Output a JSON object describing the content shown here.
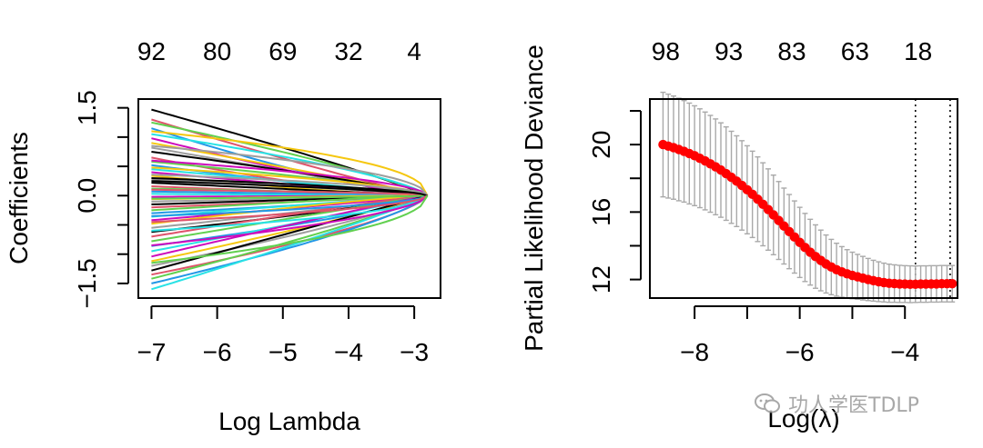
{
  "chart_data": [
    {
      "type": "line",
      "title": "",
      "xlabel": "Log Lambda",
      "ylabel": "Coefficients",
      "xlim": [
        -7.2,
        -2.6
      ],
      "ylim": [
        -1.75,
        1.65
      ],
      "x_ticks": [
        -7,
        -6,
        -5,
        -4,
        -3
      ],
      "x_tick_labels": [
        "−7",
        "−6",
        "−5",
        "−4",
        "−3"
      ],
      "y_ticks": [
        -1.5,
        0.0,
        1.5
      ],
      "y_tick_labels": [
        "−1.5",
        "0.0",
        "1.5"
      ],
      "top_axis_labels": [
        "92",
        "80",
        "69",
        "32",
        "4"
      ],
      "x_start": -7.0,
      "x_end": -2.8,
      "series_colors": [
        "#000000",
        "#DF536B",
        "#61D04F",
        "#2297E6",
        "#28E2E5",
        "#CD0BBC",
        "#F5C710",
        "#9E9E9E"
      ],
      "series_start_values": [
        1.47,
        1.3,
        1.25,
        1.15,
        1.05,
        0.98,
        0.9,
        0.82,
        0.75,
        0.65,
        0.58,
        0.52,
        0.45,
        0.4,
        0.34,
        0.28,
        0.22,
        0.16,
        0.12,
        0.07,
        0.03,
        -0.02,
        -0.06,
        -0.1,
        -0.15,
        -0.2,
        -0.25,
        -0.3,
        -0.36,
        -0.42,
        -0.48,
        -0.55,
        -0.62,
        -0.7,
        -0.78,
        -0.86,
        -0.95,
        -1.04,
        -1.12,
        -1.2,
        -1.28,
        -1.35,
        -1.42,
        -1.5,
        -1.6,
        0.6,
        0.48,
        0.36,
        0.25,
        0.1,
        -0.05,
        -0.35,
        -0.6,
        -0.85,
        1.1,
        0.85,
        0.3,
        -0.45,
        -1.15
      ],
      "series_decay_rates": [
        0.9,
        1.1,
        0.8,
        1.3,
        0.7,
        1.2,
        0.95,
        1.0,
        0.85,
        1.4,
        0.75,
        1.15,
        0.9,
        1.05,
        1.3,
        0.8,
        1.0,
        1.2,
        0.7,
        0.9,
        1.1,
        0.95,
        1.25,
        0.85,
        1.0,
        0.9,
        1.15,
        0.8,
        1.05,
        0.95,
        1.2,
        0.9,
        0.85,
        1.1,
        1.0,
        0.75,
        0.95,
        1.05,
        0.9,
        0.8,
        1.0,
        0.7,
        0.85,
        0.75,
        0.9,
        0.55,
        0.6,
        0.5,
        0.65,
        0.5,
        0.6,
        0.55,
        0.5,
        0.6,
        0.45,
        0.5,
        0.6,
        0.55,
        0.5
      ]
    },
    {
      "type": "line",
      "title": "",
      "xlabel": "Log(λ)",
      "ylabel": "Partial Likelihood Deviance",
      "xlim": [
        -8.85,
        -3.0
      ],
      "ylim": [
        10.9,
        22.7
      ],
      "x_ticks": [
        -8,
        -6,
        -4
      ],
      "x_tick_labels": [
        "−8",
        "−6",
        "−4"
      ],
      "y_ticks": [
        12,
        16,
        20
      ],
      "y_tick_labels": [
        "12",
        "16",
        "20"
      ],
      "y_minor_ticks": [
        14,
        18,
        22
      ],
      "top_axis_labels": [
        "98",
        "93",
        "83",
        "63",
        "18"
      ],
      "vlines": [
        -3.8,
        -3.14
      ],
      "x": [
        -8.6,
        -8.5,
        -8.4,
        -8.3,
        -8.2,
        -8.1,
        -8.0,
        -7.9,
        -7.8,
        -7.7,
        -7.6,
        -7.5,
        -7.4,
        -7.3,
        -7.2,
        -7.1,
        -7.0,
        -6.9,
        -6.8,
        -6.7,
        -6.6,
        -6.5,
        -6.4,
        -6.3,
        -6.2,
        -6.1,
        -6.0,
        -5.9,
        -5.8,
        -5.7,
        -5.6,
        -5.5,
        -5.4,
        -5.3,
        -5.2,
        -5.1,
        -5.0,
        -4.9,
        -4.8,
        -4.7,
        -4.6,
        -4.5,
        -4.4,
        -4.3,
        -4.2,
        -4.1,
        -4.0,
        -3.9,
        -3.8,
        -3.7,
        -3.6,
        -3.5,
        -3.4,
        -3.3,
        -3.2,
        -3.1
      ],
      "mean": [
        20.0,
        19.91,
        19.82,
        19.71,
        19.6,
        19.47,
        19.34,
        19.19,
        19.03,
        18.86,
        18.68,
        18.49,
        18.28,
        18.06,
        17.83,
        17.58,
        17.32,
        17.05,
        16.76,
        16.46,
        16.15,
        15.83,
        15.5,
        15.17,
        14.84,
        14.52,
        14.2,
        13.9,
        13.62,
        13.36,
        13.13,
        12.92,
        12.74,
        12.58,
        12.45,
        12.34,
        12.24,
        12.16,
        12.08,
        12.0,
        11.93,
        11.87,
        11.82,
        11.78,
        11.76,
        11.74,
        11.73,
        11.72,
        11.72,
        11.73,
        11.73,
        11.74,
        11.74,
        11.75,
        11.75,
        11.75
      ],
      "upper": [
        23.1,
        22.99,
        22.88,
        22.75,
        22.61,
        22.46,
        22.3,
        22.12,
        21.93,
        21.73,
        21.52,
        21.29,
        21.05,
        20.79,
        20.52,
        20.23,
        19.93,
        19.61,
        19.27,
        18.92,
        18.56,
        18.19,
        17.81,
        17.42,
        17.04,
        16.66,
        16.28,
        15.92,
        15.57,
        15.24,
        14.93,
        14.64,
        14.38,
        14.15,
        13.95,
        13.77,
        13.62,
        13.49,
        13.37,
        13.25,
        13.14,
        13.05,
        12.97,
        12.91,
        12.87,
        12.84,
        12.82,
        12.81,
        12.8,
        12.81,
        12.81,
        12.82,
        12.82,
        12.83,
        12.83,
        12.83
      ],
      "lower": [
        16.9,
        16.83,
        16.76,
        16.67,
        16.59,
        16.48,
        16.38,
        16.26,
        16.13,
        15.99,
        15.84,
        15.69,
        15.51,
        15.33,
        15.14,
        14.93,
        14.71,
        14.49,
        14.25,
        14.0,
        13.74,
        13.47,
        13.19,
        12.92,
        12.64,
        12.38,
        12.12,
        11.88,
        11.67,
        11.48,
        11.33,
        11.2,
        11.1,
        11.01,
        10.95,
        10.91,
        10.86,
        10.83,
        10.79,
        10.75,
        10.72,
        10.69,
        10.67,
        10.65,
        10.65,
        10.64,
        10.64,
        10.63,
        10.64,
        10.65,
        10.65,
        10.66,
        10.66,
        10.67,
        10.67,
        10.67
      ]
    }
  ],
  "watermark": {
    "text": "功人学医TDLP"
  }
}
